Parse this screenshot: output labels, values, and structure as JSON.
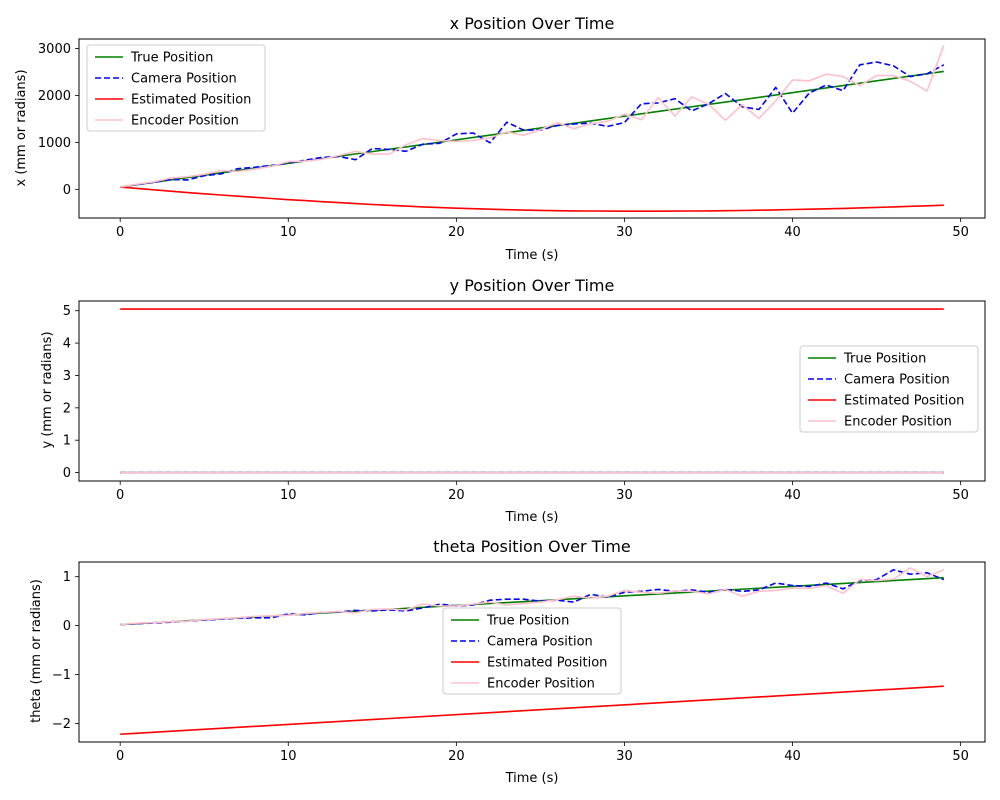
{
  "chart_data": [
    {
      "type": "line",
      "title": "x Position Over Time",
      "xlabel": "Time (s)",
      "ylabel": "x (mm or radians)",
      "xlim": [
        -2.45,
        51.45
      ],
      "ylim": [
        -610,
        3200
      ],
      "xticks": [
        0,
        10,
        20,
        30,
        40,
        50
      ],
      "yticks": [
        0,
        1000,
        2000,
        3000
      ],
      "ytick_labels": [
        "0",
        "1000",
        "2000",
        "3000"
      ],
      "legend_position": "upper left",
      "grid": false,
      "series": [
        {
          "name": "True Position",
          "color": "#008000",
          "style": "solid",
          "x": [
            0,
            49
          ],
          "y": [
            50,
            2510
          ]
        },
        {
          "name": "Camera Position",
          "color": "#0000ff",
          "style": "dashed",
          "x": [
            0,
            1,
            2,
            3,
            4,
            5,
            6,
            7,
            8,
            9,
            10,
            11,
            12,
            13,
            14,
            15,
            16,
            17,
            18,
            19,
            20,
            21,
            22,
            23,
            24,
            25,
            26,
            27,
            28,
            29,
            30,
            31,
            32,
            33,
            34,
            35,
            36,
            37,
            38,
            39,
            40,
            41,
            42,
            43,
            44,
            45,
            46,
            47,
            48,
            49
          ],
          "y": [
            50,
            100,
            150,
            210,
            200,
            290,
            330,
            440,
            470,
            510,
            560,
            620,
            680,
            700,
            630,
            870,
            850,
            810,
            960,
            980,
            1180,
            1200,
            990,
            1430,
            1260,
            1260,
            1360,
            1390,
            1410,
            1340,
            1420,
            1820,
            1840,
            1930,
            1670,
            1820,
            2040,
            1760,
            1700,
            2170,
            1620,
            2050,
            2220,
            2100,
            2650,
            2710,
            2630,
            2400,
            2460,
            2650
          ]
        },
        {
          "name": "Estimated Position",
          "color": "#ff0000",
          "style": "solid",
          "x": [
            0,
            1,
            2,
            3,
            4,
            5,
            6,
            7,
            8,
            9,
            10,
            11,
            12,
            13,
            14,
            15,
            16,
            17,
            18,
            19,
            20,
            21,
            22,
            23,
            24,
            25,
            26,
            27,
            28,
            29,
            30,
            31,
            32,
            33,
            34,
            35,
            36,
            37,
            38,
            39,
            40,
            41,
            42,
            43,
            44,
            45,
            46,
            47,
            48,
            49
          ],
          "y": [
            50,
            20,
            -10,
            -40,
            -70,
            -95,
            -120,
            -145,
            -170,
            -195,
            -220,
            -240,
            -262,
            -283,
            -303,
            -322,
            -340,
            -357,
            -373,
            -388,
            -401,
            -413,
            -423,
            -433,
            -441,
            -448,
            -454,
            -458,
            -462,
            -464,
            -465,
            -466,
            -465,
            -464,
            -462,
            -458,
            -454,
            -450,
            -444,
            -438,
            -430,
            -422,
            -414,
            -405,
            -395,
            -385,
            -374,
            -362,
            -350,
            -338
          ]
        },
        {
          "name": "Encoder Position",
          "color": "#ffc0cb",
          "style": "solid",
          "x": [
            0,
            1,
            2,
            3,
            4,
            5,
            6,
            7,
            8,
            9,
            10,
            11,
            12,
            13,
            14,
            15,
            16,
            17,
            18,
            19,
            20,
            21,
            22,
            23,
            24,
            25,
            26,
            27,
            28,
            29,
            30,
            31,
            32,
            33,
            34,
            35,
            36,
            37,
            38,
            39,
            40,
            41,
            42,
            43,
            44,
            45,
            46,
            47,
            48,
            49
          ],
          "y": [
            50,
            110,
            160,
            240,
            270,
            320,
            400,
            380,
            430,
            490,
            590,
            600,
            640,
            720,
            810,
            750,
            750,
            950,
            1080,
            1040,
            1020,
            1040,
            1100,
            1220,
            1150,
            1270,
            1420,
            1290,
            1400,
            1450,
            1600,
            1480,
            1950,
            1560,
            1970,
            1810,
            1470,
            1800,
            1510,
            1880,
            2330,
            2310,
            2450,
            2400,
            2210,
            2420,
            2420,
            2300,
            2090,
            3070
          ]
        }
      ]
    },
    {
      "type": "line",
      "title": "y Position Over Time",
      "xlabel": "Time (s)",
      "ylabel": "y (mm or radians)",
      "xlim": [
        -2.45,
        51.45
      ],
      "ylim": [
        -0.26,
        5.3
      ],
      "xticks": [
        0,
        10,
        20,
        30,
        40,
        50
      ],
      "yticks": [
        0,
        1,
        2,
        3,
        4,
        5
      ],
      "ytick_labels": [
        "0",
        "1",
        "2",
        "3",
        "4",
        "5"
      ],
      "legend_position": "center right",
      "grid": false,
      "series": [
        {
          "name": "True Position",
          "color": "#008000",
          "style": "solid",
          "x": [
            0,
            49
          ],
          "y": [
            0,
            0
          ]
        },
        {
          "name": "Camera Position",
          "color": "#0000ff",
          "style": "dashed",
          "x": [
            0,
            49
          ],
          "y": [
            0,
            0
          ]
        },
        {
          "name": "Estimated Position",
          "color": "#ff0000",
          "style": "solid",
          "x": [
            0,
            49
          ],
          "y": [
            5.05,
            5.05
          ]
        },
        {
          "name": "Encoder Position",
          "color": "#ffc0cb",
          "style": "solid",
          "x": [
            0,
            49
          ],
          "y": [
            0,
            0
          ]
        }
      ]
    },
    {
      "type": "line",
      "title": "theta Position Over Time",
      "xlabel": "Time (s)",
      "ylabel": "theta (mm or radians)",
      "xlim": [
        -2.45,
        51.45
      ],
      "ylim": [
        -2.38,
        1.3
      ],
      "xticks": [
        0,
        10,
        20,
        30,
        40,
        50
      ],
      "yticks": [
        -2,
        -1,
        0,
        1
      ],
      "ytick_labels": [
        "−2",
        "−1",
        "0",
        "1"
      ],
      "legend_position": "lower center",
      "grid": false,
      "series": [
        {
          "name": "True Position",
          "color": "#008000",
          "style": "solid",
          "x": [
            0,
            49
          ],
          "y": [
            0.02,
            0.98
          ]
        },
        {
          "name": "Camera Position",
          "color": "#0000ff",
          "style": "dashed",
          "x": [
            0,
            1,
            2,
            3,
            4,
            5,
            6,
            7,
            8,
            9,
            10,
            11,
            12,
            13,
            14,
            15,
            16,
            17,
            18,
            19,
            20,
            21,
            22,
            23,
            24,
            25,
            26,
            27,
            28,
            29,
            30,
            31,
            32,
            33,
            34,
            35,
            36,
            37,
            38,
            39,
            40,
            41,
            42,
            43,
            44,
            45,
            46,
            47,
            48,
            49
          ],
          "y": [
            0.02,
            0.04,
            0.05,
            0.07,
            0.09,
            0.11,
            0.13,
            0.15,
            0.16,
            0.16,
            0.24,
            0.22,
            0.27,
            0.28,
            0.31,
            0.3,
            0.32,
            0.3,
            0.36,
            0.44,
            0.4,
            0.42,
            0.52,
            0.54,
            0.54,
            0.5,
            0.52,
            0.48,
            0.64,
            0.58,
            0.68,
            0.7,
            0.74,
            0.7,
            0.73,
            0.68,
            0.74,
            0.7,
            0.73,
            0.87,
            0.82,
            0.8,
            0.87,
            0.75,
            0.92,
            0.94,
            1.14,
            1.05,
            1.08,
            0.94
          ]
        },
        {
          "name": "Estimated Position",
          "color": "#ff0000",
          "style": "solid",
          "x": [
            0,
            49
          ],
          "y": [
            -2.22,
            -1.24
          ]
        },
        {
          "name": "Encoder Position",
          "color": "#ffc0cb",
          "style": "solid",
          "x": [
            0,
            1,
            2,
            3,
            4,
            5,
            6,
            7,
            8,
            9,
            10,
            11,
            12,
            13,
            14,
            15,
            16,
            17,
            18,
            19,
            20,
            21,
            22,
            23,
            24,
            25,
            26,
            27,
            28,
            29,
            30,
            31,
            32,
            33,
            34,
            35,
            36,
            37,
            38,
            39,
            40,
            41,
            42,
            43,
            44,
            45,
            46,
            47,
            48,
            49
          ],
          "y": [
            0.02,
            0.05,
            0.06,
            0.08,
            0.09,
            0.12,
            0.14,
            0.16,
            0.19,
            0.2,
            0.21,
            0.25,
            0.27,
            0.29,
            0.26,
            0.33,
            0.34,
            0.32,
            0.44,
            0.4,
            0.4,
            0.44,
            0.48,
            0.42,
            0.45,
            0.48,
            0.53,
            0.6,
            0.56,
            0.6,
            0.72,
            0.68,
            0.66,
            0.71,
            0.7,
            0.65,
            0.74,
            0.6,
            0.7,
            0.72,
            0.77,
            0.76,
            0.82,
            0.66,
            0.94,
            0.92,
            0.95,
            1.18,
            1.0,
            1.14
          ]
        }
      ]
    }
  ]
}
